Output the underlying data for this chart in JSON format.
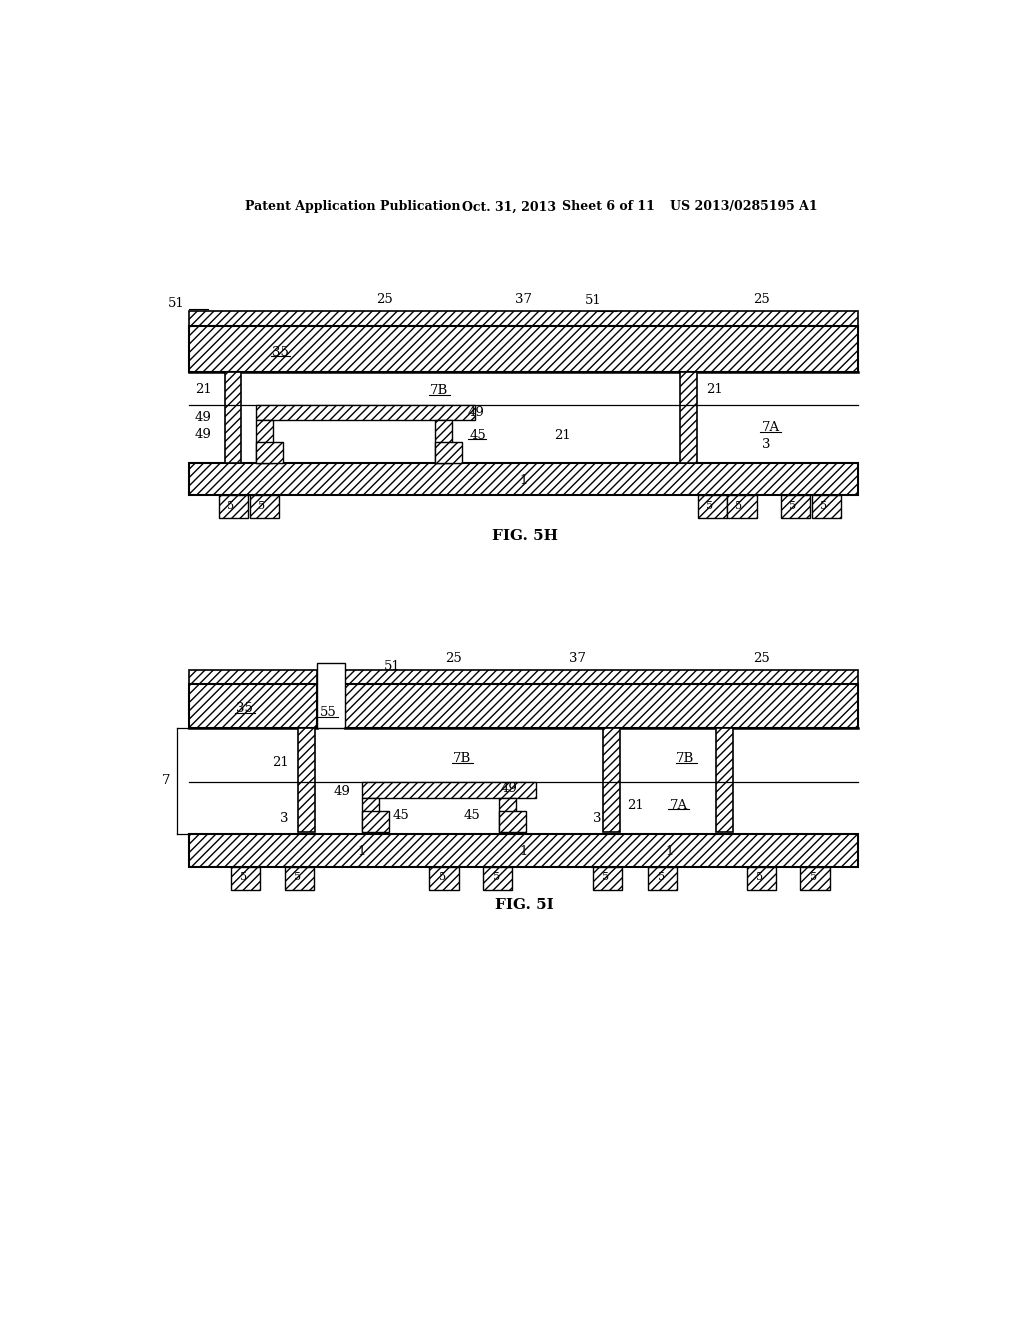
{
  "bg_color": "#ffffff",
  "header_text1": "Patent Application Publication",
  "header_text2": "Oct. 31, 2013",
  "header_text3": "Sheet 6 of 11",
  "header_text4": "US 2013/0285195 A1",
  "fig5h_caption": "FIG. 5H",
  "fig5i_caption": "FIG. 5I"
}
